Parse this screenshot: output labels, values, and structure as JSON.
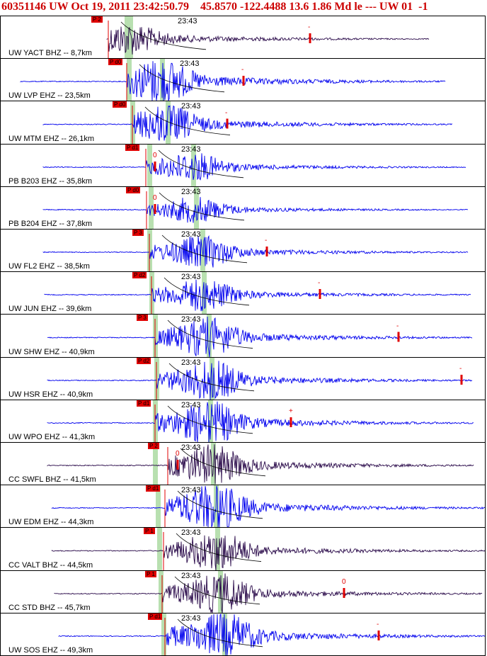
{
  "header": {
    "title": "60351146 UW Oct 19, 2011 23:42:50.79    45.8570 -122.4488 13.6 1.86 Md le --- UW 01  -1"
  },
  "colors": {
    "blue_trace": "#0000ee",
    "dark_trace": "#2a0a4a",
    "pick_red": "#e00000",
    "window_green": "#b8e0b0"
  },
  "panels": [
    {
      "label": "UW YACT BHZ -- 8,7km",
      "time": "23:43",
      "pick": "P 2",
      "amp_mark": "-",
      "color": "dark"
    },
    {
      "label": "UW LVP EHZ -- 23,5km",
      "time": "23:43",
      "pick": "P d0",
      "amp_mark": "-",
      "color": "blue"
    },
    {
      "label": "UW MTM EHZ -- 26,1km",
      "time": "23:43",
      "pick": "P d0",
      "amp_mark": "-",
      "color": "blue"
    },
    {
      "label": "PB B203 EHZ -- 35,8km",
      "time": "23:43",
      "pick": "P d1",
      "amp_mark": "0",
      "color": "blue"
    },
    {
      "label": "PB B204 EHZ -- 37,8km",
      "time": "23:43",
      "pick": "P d0",
      "amp_mark": "0",
      "color": "blue"
    },
    {
      "label": "UW FL2 EHZ -- 38,5km",
      "time": "23:43",
      "pick": "P 3",
      "amp_mark": "-",
      "color": "blue"
    },
    {
      "label": "UW JUN EHZ -- 39,6km",
      "time": "23:43",
      "pick": "P d2",
      "amp_mark": "-",
      "color": "blue"
    },
    {
      "label": "UW SHW EHZ -- 40,9km",
      "time": "23:43",
      "pick": "P 3",
      "amp_mark": "-",
      "color": "blue"
    },
    {
      "label": "UW HSR EHZ -- 40,9km",
      "time": "23:43",
      "pick": "P d2",
      "amp_mark": "-",
      "color": "blue"
    },
    {
      "label": "UW WPO EHZ -- 41,3km",
      "time": "23:43",
      "pick": "P d1",
      "amp_mark": "+",
      "color": "blue"
    },
    {
      "label": "CC SWFL BHZ -- 41,5km",
      "time": "23:43",
      "pick": "P 2",
      "amp_mark": "0",
      "color": "dark"
    },
    {
      "label": "UW EDM EHZ -- 44,3km",
      "time": "23:43",
      "pick": "P d1",
      "amp_mark": "",
      "color": "blue"
    },
    {
      "label": "CC VALT BHZ -- 44,5km",
      "time": "23:43",
      "pick": "P 1",
      "amp_mark": "",
      "color": "dark"
    },
    {
      "label": "CC STD BHZ -- 45,7km",
      "time": "23:43",
      "pick": "P 1",
      "amp_mark": "0",
      "color": "dark"
    },
    {
      "label": "UW SOS EHZ -- 49,3km",
      "time": "23:43",
      "pick": "P d1",
      "amp_mark": "-",
      "color": "blue"
    }
  ]
}
